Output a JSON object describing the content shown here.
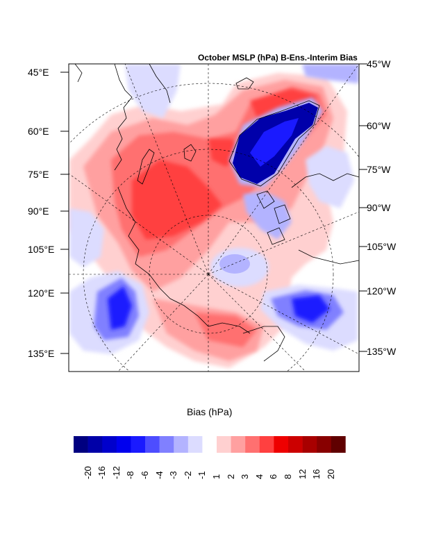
{
  "title": "October MSLP (hPa) B-Ens.-Interim Bias",
  "left_labels": [
    "45°E",
    "60°E",
    "75°E",
    "90°E",
    "105°E",
    "120°E",
    "135°E"
  ],
  "right_labels": [
    "45°W",
    "60°W",
    "75°W",
    "90°W",
    "105°W",
    "120°W",
    "135°W"
  ],
  "colorbar": {
    "title": "Bias (hPa)",
    "ticks": [
      "-20",
      "-16",
      "-12",
      "-8",
      "-6",
      "-4",
      "-3",
      "-2",
      "-1",
      "1",
      "2",
      "3",
      "4",
      "6",
      "8",
      "12",
      "16",
      "20"
    ],
    "colors": [
      "#000080",
      "#0000a8",
      "#0000cc",
      "#0000ee",
      "#1a1aff",
      "#4d4dff",
      "#8080ff",
      "#b3b3ff",
      "#dcdcff",
      "#ffffff",
      "#ffd0d0",
      "#ffa0a0",
      "#ff7070",
      "#ff4040",
      "#ee0000",
      "#cc0000",
      "#a80000",
      "#880000",
      "#600000"
    ]
  },
  "map_colors": {
    "red_light": "#ffd0d0",
    "red_mid": "#ffa0a0",
    "red_strong": "#ff7070",
    "red_deep": "#ff4040",
    "red_core": "#ee0000",
    "blue_light": "#dcdcff",
    "blue_mid": "#b3b3ff",
    "blue_strong": "#8080ff",
    "blue_deep": "#1a1aff",
    "blue_core": "#0000aa"
  }
}
